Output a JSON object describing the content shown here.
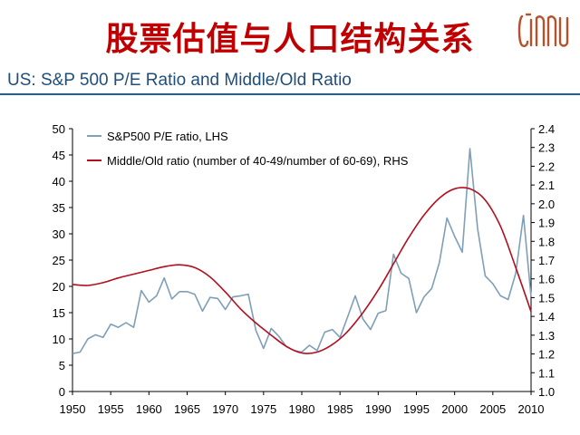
{
  "page": {
    "title": "股票估值与人口结构关系",
    "subtitle": "US: S&P 500 P/E Ratio and Middle/Old Ratio",
    "logo_icon": "stylized-monogram-logo",
    "accent_color": "#c00000",
    "subtitle_color": "#1f4e79"
  },
  "chart_data": {
    "type": "line",
    "title": "",
    "xlabel": "",
    "ylabel_left": "",
    "ylabel_right": "",
    "xlim": [
      1950,
      2010
    ],
    "ylim_left": [
      0,
      50
    ],
    "ylim_right": [
      1.0,
      2.4
    ],
    "x_ticks": [
      "1950",
      "1955",
      "1960",
      "1965",
      "1970",
      "1975",
      "1980",
      "1985",
      "1990",
      "1995",
      "2000",
      "2005",
      "2010"
    ],
    "y_left_ticks": [
      "0",
      "5",
      "10",
      "15",
      "20",
      "25",
      "30",
      "35",
      "40",
      "45",
      "50"
    ],
    "y_right_ticks": [
      "1.0",
      "1.1",
      "1.2",
      "1.3",
      "1.4",
      "1.5",
      "1.6",
      "1.7",
      "1.8",
      "1.9",
      "2.0",
      "2.1",
      "2.2",
      "2.3",
      "2.4"
    ],
    "grid": false,
    "legend_position": "top-left",
    "series": [
      {
        "name": "S&P500 P/E ratio, LHS",
        "axis": "left",
        "color": "#7f9fb8",
        "x": [
          1950,
          1951,
          1952,
          1953,
          1954,
          1955,
          1956,
          1957,
          1958,
          1959,
          1960,
          1961,
          1962,
          1963,
          1964,
          1965,
          1966,
          1967,
          1968,
          1969,
          1970,
          1971,
          1972,
          1973,
          1974,
          1975,
          1976,
          1977,
          1978,
          1979,
          1980,
          1981,
          1982,
          1983,
          1984,
          1985,
          1986,
          1987,
          1988,
          1989,
          1990,
          1991,
          1992,
          1993,
          1994,
          1995,
          1996,
          1997,
          1998,
          1999,
          2000,
          2001,
          2002,
          2003,
          2004,
          2005,
          2006,
          2007,
          2008,
          2009,
          2010
        ],
        "values": [
          7.2,
          7.5,
          10.0,
          10.8,
          10.3,
          12.8,
          12.2,
          13.1,
          12.2,
          19.2,
          17.0,
          18.2,
          21.6,
          17.6,
          19.0,
          19.0,
          18.5,
          15.3,
          17.9,
          17.7,
          15.6,
          18.0,
          18.2,
          18.5,
          11.6,
          8.2,
          12.0,
          10.5,
          8.5,
          7.8,
          7.5,
          8.8,
          7.8,
          11.3,
          11.8,
          10.3,
          14.2,
          18.2,
          13.8,
          11.8,
          14.9,
          15.4,
          26.1,
          22.5,
          21.5,
          15.0,
          18.0,
          19.6,
          24.5,
          33.0,
          29.5,
          26.5,
          46.2,
          31.0,
          22.0,
          20.5,
          18.2,
          17.5,
          22.5,
          33.5,
          18.0
        ]
      },
      {
        "name": "Middle/Old ratio (number of 40-49/number of 60-69), RHS",
        "axis": "right",
        "color": "#b01020",
        "x": [
          1950,
          1952,
          1954,
          1956,
          1958,
          1960,
          1962,
          1964,
          1966,
          1968,
          1970,
          1972,
          1974,
          1976,
          1978,
          1980,
          1982,
          1984,
          1986,
          1988,
          1990,
          1992,
          1994,
          1996,
          1998,
          2000,
          2002,
          2004,
          2006,
          2008,
          2010
        ],
        "values": [
          1.57,
          1.565,
          1.58,
          1.605,
          1.625,
          1.645,
          1.665,
          1.675,
          1.66,
          1.61,
          1.53,
          1.44,
          1.365,
          1.3,
          1.24,
          1.205,
          1.21,
          1.25,
          1.32,
          1.42,
          1.54,
          1.68,
          1.82,
          1.94,
          2.03,
          2.08,
          2.08,
          2.02,
          1.88,
          1.66,
          1.425
        ]
      }
    ]
  }
}
